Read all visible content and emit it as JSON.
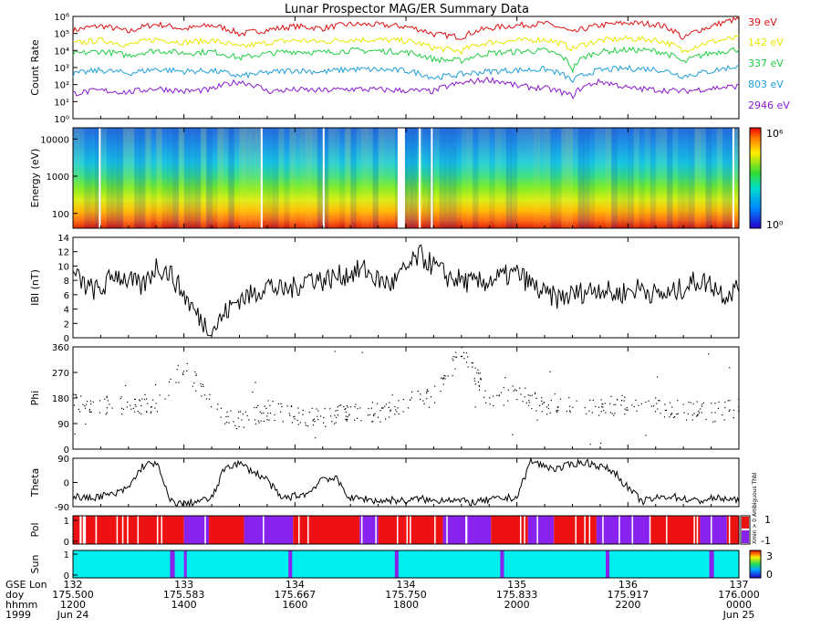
{
  "title": "Lunar Prospector MAG/ER Summary Data",
  "colors": {
    "39 eV": "#dd1111",
    "142 eV": "#e6e600",
    "337 eV": "#22cc44",
    "803 eV": "#1f9ed8",
    "2946 eV": "#8a1ad0",
    "pol_pos": "#ee1111",
    "pol_neg": "#8a22ee",
    "sun_lit": "#00eeee",
    "sun_shadow": "#8a22ee"
  },
  "chart_data": [
    {
      "type": "line",
      "name": "count-rate",
      "ylabel": "Count Rate",
      "yscale": "log",
      "ylim": [
        1,
        1000000
      ],
      "yticks": [
        "10⁰",
        "10¹",
        "10²",
        "10³",
        "10⁴",
        "10⁵",
        "10⁶"
      ],
      "x": [
        12.0,
        12.5,
        13.0,
        13.5,
        14.0,
        14.5,
        15.0,
        15.5,
        16.0,
        16.5,
        17.0,
        17.5,
        18.0,
        18.5,
        19.0,
        19.5,
        20.0,
        20.5,
        21.0,
        21.5,
        22.0,
        22.5,
        23.0,
        23.5,
        24.0
      ],
      "series": [
        {
          "name": "39 eV",
          "values": [
            150000,
            280000,
            120000,
            350000,
            180000,
            300000,
            90000,
            160000,
            260000,
            200000,
            350000,
            320000,
            250000,
            90000,
            60000,
            200000,
            300000,
            380000,
            100000,
            300000,
            420000,
            350000,
            40000,
            250000,
            700000
          ]
        },
        {
          "name": "142 eV",
          "values": [
            25000,
            40000,
            20000,
            45000,
            30000,
            38000,
            15000,
            28000,
            40000,
            32000,
            45000,
            42000,
            36000,
            14000,
            9000,
            30000,
            38000,
            45000,
            12000,
            38000,
            50000,
            42000,
            8000,
            32000,
            55000
          ]
        },
        {
          "name": "337 eV",
          "values": [
            6000,
            9000,
            5000,
            10000,
            7000,
            8500,
            3500,
            6500,
            9000,
            7500,
            10000,
            9500,
            8000,
            3000,
            2500,
            7000,
            8500,
            10000,
            600,
            8500,
            11000,
            9500,
            1800,
            7000,
            12000
          ]
        },
        {
          "name": "803 eV",
          "values": [
            400,
            700,
            450,
            800,
            600,
            650,
            300,
            500,
            700,
            550,
            800,
            750,
            650,
            250,
            400,
            600,
            700,
            800,
            150,
            700,
            900,
            800,
            300,
            600,
            1200
          ]
        },
        {
          "name": "2946 eV",
          "values": [
            30,
            45,
            35,
            60,
            40,
            50,
            150,
            40,
            50,
            45,
            55,
            50,
            45,
            40,
            120,
            200,
            80,
            60,
            20,
            150,
            60,
            50,
            40,
            60,
            80
          ]
        }
      ]
    },
    {
      "type": "heatmap",
      "name": "energy-spectrogram",
      "ylabel": "Energy (eV)",
      "yscale": "log",
      "ylim": [
        40,
        20000
      ],
      "yticks": [
        "100",
        "1000",
        "10000"
      ],
      "colorbar_ticks": [
        "10⁰",
        "10⁶"
      ],
      "data_gaps_hhmm": [
        "1229",
        "1524",
        "1631",
        "1752",
        "1815",
        "1828",
        "2354"
      ]
    },
    {
      "type": "line",
      "name": "field-magnitude",
      "ylabel": "IBI (nT)",
      "ylim": [
        0,
        14
      ],
      "yticks": [
        "0",
        "2",
        "4",
        "6",
        "8",
        "10",
        "12",
        "14"
      ],
      "x": [
        12.0,
        12.25,
        12.5,
        12.75,
        13.0,
        13.25,
        13.5,
        13.75,
        14.0,
        14.25,
        14.5,
        14.75,
        15.0,
        15.25,
        15.5,
        15.75,
        16.0,
        16.25,
        16.5,
        16.75,
        17.0,
        17.25,
        17.5,
        17.75,
        18.0,
        18.25,
        18.5,
        18.75,
        19.0,
        19.25,
        19.5,
        19.75,
        20.0,
        20.25,
        20.5,
        20.75,
        21.0,
        21.25,
        21.5,
        21.75,
        22.0,
        22.25,
        22.5,
        22.75,
        23.0,
        23.25,
        23.5,
        23.75,
        24.0
      ],
      "values": [
        9.0,
        7.0,
        6.5,
        9.0,
        8.0,
        7.0,
        10.0,
        9.0,
        6.0,
        3.0,
        1.0,
        3.5,
        5.5,
        6.0,
        7.5,
        6.5,
        7.0,
        8.5,
        8.0,
        8.5,
        9.0,
        9.5,
        8.0,
        7.5,
        9.5,
        11.5,
        10.0,
        8.5,
        8.0,
        7.5,
        8.0,
        8.5,
        9.0,
        7.5,
        6.0,
        5.5,
        6.0,
        6.5,
        7.0,
        6.0,
        6.5,
        7.0,
        6.0,
        6.0,
        7.0,
        8.0,
        7.5,
        6.0,
        7.0
      ]
    },
    {
      "type": "scatter",
      "name": "phi",
      "ylabel": "Phi",
      "ylim": [
        0,
        360
      ],
      "yticks": [
        "0",
        "90",
        "180",
        "270",
        "360"
      ],
      "x": [
        12.0,
        12.5,
        13.0,
        13.5,
        14.0,
        14.5,
        15.0,
        15.5,
        16.0,
        16.5,
        17.0,
        17.5,
        18.0,
        18.5,
        19.0,
        19.5,
        20.0,
        20.5,
        21.0,
        21.5,
        22.0,
        22.5,
        23.0,
        23.5,
        24.0
      ],
      "values": [
        170,
        160,
        150,
        165,
        300,
        140,
        100,
        140,
        120,
        110,
        140,
        130,
        170,
        185,
        350,
        175,
        200,
        150,
        155,
        150,
        160,
        150,
        140,
        130,
        150
      ]
    },
    {
      "type": "line",
      "name": "theta",
      "ylabel": "Theta",
      "ylim": [
        -90,
        90
      ],
      "yticks": [
        "-90",
        "0",
        "90"
      ],
      "x": [
        12.0,
        12.25,
        12.5,
        12.75,
        13.0,
        13.25,
        13.5,
        13.75,
        14.0,
        14.25,
        14.5,
        14.75,
        15.0,
        15.25,
        15.5,
        15.75,
        16.0,
        16.25,
        16.5,
        16.75,
        17.0,
        17.25,
        17.5,
        17.75,
        18.0,
        18.25,
        18.5,
        18.75,
        19.0,
        19.25,
        19.5,
        19.75,
        20.0,
        20.25,
        20.5,
        20.75,
        21.0,
        21.25,
        21.5,
        21.75,
        22.0,
        22.25,
        22.5,
        22.75,
        23.0,
        23.25,
        23.5,
        23.75,
        24.0
      ],
      "values": [
        -50,
        -60,
        -50,
        -45,
        -20,
        60,
        75,
        -70,
        -80,
        -70,
        -60,
        60,
        70,
        40,
        10,
        -60,
        -50,
        -40,
        20,
        10,
        -60,
        -60,
        -70,
        -65,
        -70,
        -60,
        -70,
        -60,
        -70,
        -75,
        -65,
        -60,
        -55,
        80,
        60,
        50,
        70,
        75,
        60,
        40,
        -20,
        -70,
        -60,
        -50,
        -60,
        -70,
        -60,
        -60,
        -70
      ]
    },
    {
      "type": "bar",
      "name": "polarity",
      "ylabel": "Pol",
      "colorbar_ticks": [
        "1",
        "-1"
      ],
      "colorbar_note": "Xmin > 0 Ambiguous Thbl",
      "segments_hhmm": [
        {
          "from": "1200",
          "to": "1224",
          "value": 1
        },
        {
          "from": "1224",
          "to": "1400",
          "value": 1
        },
        {
          "from": "1400",
          "to": "1427",
          "value": -1
        },
        {
          "from": "1427",
          "to": "1505",
          "value": 1
        },
        {
          "from": "1505",
          "to": "1558",
          "value": -1
        },
        {
          "from": "1558",
          "to": "1710",
          "value": 1
        },
        {
          "from": "1710",
          "to": "1730",
          "value": -1
        },
        {
          "from": "1730",
          "to": "1840",
          "value": 1
        },
        {
          "from": "1840",
          "to": "1932",
          "value": -1
        },
        {
          "from": "1932",
          "to": "2012",
          "value": 1
        },
        {
          "from": "2012",
          "to": "2040",
          "value": -1
        },
        {
          "from": "2040",
          "to": "2126",
          "value": 1
        },
        {
          "from": "2126",
          "to": "2224",
          "value": -1
        },
        {
          "from": "2224",
          "to": "2318",
          "value": 1
        },
        {
          "from": "2318",
          "to": "2347",
          "value": -1
        },
        {
          "from": "2347",
          "to": "0000",
          "value": 1
        }
      ]
    },
    {
      "type": "bar",
      "name": "sun",
      "ylabel": "Sun",
      "colorbar_ticks": [
        "3",
        "0"
      ],
      "shadow_hhmm": [
        {
          "from": "1345",
          "to": "1350"
        },
        {
          "from": "1400",
          "to": "1403"
        },
        {
          "from": "1553",
          "to": "1557"
        },
        {
          "from": "1748",
          "to": "1752"
        },
        {
          "from": "1942",
          "to": "1946"
        },
        {
          "from": "2136",
          "to": "2140"
        },
        {
          "from": "2328",
          "to": "2333"
        }
      ]
    }
  ],
  "x_axis": {
    "row_labels": [
      "GSE Lon",
      "doy",
      "hhmm",
      "1999"
    ],
    "ticks": [
      {
        "lon": "132",
        "doy": "175.500",
        "hhmm": "1200",
        "date": "Jun 24"
      },
      {
        "lon": "133",
        "doy": "175.583",
        "hhmm": "1400",
        "date": ""
      },
      {
        "lon": "134",
        "doy": "175.667",
        "hhmm": "1600",
        "date": ""
      },
      {
        "lon": "134",
        "doy": "175.750",
        "hhmm": "1800",
        "date": ""
      },
      {
        "lon": "135",
        "doy": "175.833",
        "hhmm": "2000",
        "date": ""
      },
      {
        "lon": "136",
        "doy": "175.917",
        "hhmm": "2200",
        "date": ""
      },
      {
        "lon": "137",
        "doy": "176.000",
        "hhmm": "0000",
        "date": "Jun 25"
      }
    ]
  }
}
